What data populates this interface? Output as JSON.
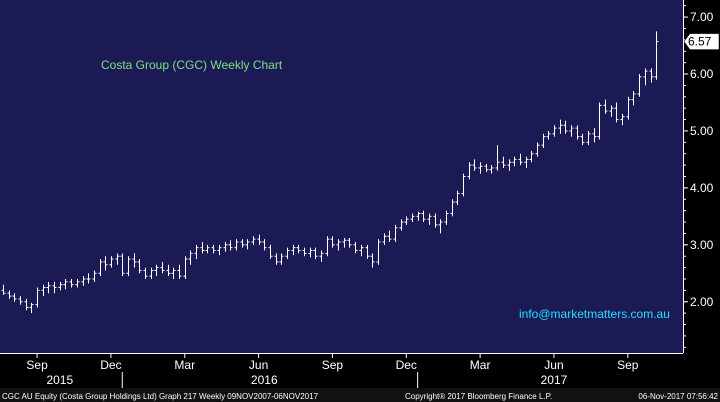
{
  "chart_title": "Costa Group (CGC) Weekly Chart",
  "watermark": "info@marketmatters.com.au",
  "last_price_label": "6.57",
  "footer": {
    "security": "CGC AU Equity (Costa Group Holdings Ltd) Graph 217  Weekly 09NOV2007-06NOV2017",
    "copyright": "Copyright® 2017 Bloomberg Finance L.P.",
    "timestamp": "06-Nov-2017 07:56:42"
  },
  "colors": {
    "plot_bg": "#1b1a54",
    "bar": "#ffffff",
    "title": "#7fe07f",
    "watermark": "#22e0ff",
    "axis_text": "#ffffff",
    "footer_text": "#ffffff"
  },
  "chart_data": {
    "type": "ohlc",
    "title": "Costa Group (CGC) Weekly Chart",
    "xlabel": "",
    "ylabel": "",
    "ylim": [
      1.1,
      7.3
    ],
    "yticks": [
      {
        "value": 7,
        "label": "7.00"
      },
      {
        "value": 6,
        "label": "6.00"
      },
      {
        "value": 5,
        "label": "5.00"
      },
      {
        "value": 4,
        "label": "4.00"
      },
      {
        "value": 3,
        "label": "3.00"
      },
      {
        "value": 2,
        "label": "2.00"
      }
    ],
    "x_month_labels": [
      {
        "label": "Sep",
        "week": 6
      },
      {
        "label": "Dec",
        "week": 19
      },
      {
        "label": "Mar",
        "week": 32
      },
      {
        "label": "Jun",
        "week": 45
      },
      {
        "label": "Sep",
        "week": 58
      },
      {
        "label": "Dec",
        "week": 71
      },
      {
        "label": "Mar",
        "week": 84
      },
      {
        "label": "Jun",
        "week": 97
      },
      {
        "label": "Sep",
        "week": 110
      }
    ],
    "x_year_labels": [
      {
        "label": "2015",
        "week": 10
      },
      {
        "label": "2016",
        "week": 46
      },
      {
        "label": "2017",
        "week": 97
      }
    ],
    "year_dividers": [
      21,
      73
    ],
    "last_value": 6.57,
    "series": [
      {
        "name": "CGC",
        "bars": [
          [
            2.2,
            2.3,
            2.12,
            2.15
          ],
          [
            2.15,
            2.2,
            2.05,
            2.1
          ],
          [
            2.1,
            2.15,
            2.0,
            2.05
          ],
          [
            2.05,
            2.1,
            1.95,
            2.0
          ],
          [
            2.0,
            2.05,
            1.85,
            1.9
          ],
          [
            1.9,
            1.98,
            1.8,
            1.95
          ],
          [
            1.95,
            2.25,
            1.9,
            2.2
          ],
          [
            2.2,
            2.3,
            2.1,
            2.25
          ],
          [
            2.25,
            2.35,
            2.15,
            2.28
          ],
          [
            2.28,
            2.35,
            2.15,
            2.25
          ],
          [
            2.25,
            2.35,
            2.2,
            2.3
          ],
          [
            2.3,
            2.4,
            2.22,
            2.35
          ],
          [
            2.35,
            2.4,
            2.25,
            2.3
          ],
          [
            2.3,
            2.4,
            2.25,
            2.35
          ],
          [
            2.35,
            2.45,
            2.28,
            2.4
          ],
          [
            2.4,
            2.5,
            2.32,
            2.4
          ],
          [
            2.4,
            2.55,
            2.35,
            2.5
          ],
          [
            2.5,
            2.75,
            2.45,
            2.7
          ],
          [
            2.7,
            2.8,
            2.55,
            2.65
          ],
          [
            2.65,
            2.8,
            2.6,
            2.75
          ],
          [
            2.75,
            2.85,
            2.65,
            2.8
          ],
          [
            2.8,
            2.85,
            2.45,
            2.5
          ],
          [
            2.5,
            2.8,
            2.45,
            2.75
          ],
          [
            2.75,
            2.85,
            2.6,
            2.7
          ],
          [
            2.7,
            2.75,
            2.5,
            2.55
          ],
          [
            2.55,
            2.6,
            2.4,
            2.45
          ],
          [
            2.45,
            2.6,
            2.4,
            2.55
          ],
          [
            2.55,
            2.65,
            2.45,
            2.6
          ],
          [
            2.6,
            2.7,
            2.5,
            2.55
          ],
          [
            2.55,
            2.65,
            2.45,
            2.5
          ],
          [
            2.5,
            2.6,
            2.4,
            2.55
          ],
          [
            2.55,
            2.65,
            2.4,
            2.45
          ],
          [
            2.45,
            2.8,
            2.4,
            2.75
          ],
          [
            2.75,
            2.9,
            2.65,
            2.85
          ],
          [
            2.85,
            3.0,
            2.75,
            2.95
          ],
          [
            2.95,
            3.05,
            2.85,
            2.9
          ],
          [
            2.9,
            3.0,
            2.85,
            2.95
          ],
          [
            2.95,
            3.0,
            2.85,
            2.9
          ],
          [
            2.9,
            3.0,
            2.82,
            2.95
          ],
          [
            2.95,
            3.05,
            2.88,
            3.0
          ],
          [
            3.0,
            3.08,
            2.9,
            2.95
          ],
          [
            2.95,
            3.1,
            2.9,
            3.05
          ],
          [
            3.05,
            3.1,
            2.95,
            3.0
          ],
          [
            3.0,
            3.1,
            2.92,
            3.05
          ],
          [
            3.05,
            3.15,
            3.0,
            3.1
          ],
          [
            3.1,
            3.18,
            3.0,
            3.05
          ],
          [
            3.05,
            3.1,
            2.9,
            2.95
          ],
          [
            2.95,
            3.0,
            2.75,
            2.8
          ],
          [
            2.8,
            2.85,
            2.65,
            2.7
          ],
          [
            2.7,
            2.85,
            2.65,
            2.8
          ],
          [
            2.8,
            2.95,
            2.75,
            2.9
          ],
          [
            2.9,
            3.0,
            2.82,
            2.95
          ],
          [
            2.95,
            3.0,
            2.85,
            2.9
          ],
          [
            2.9,
            2.95,
            2.8,
            2.85
          ],
          [
            2.85,
            2.95,
            2.78,
            2.9
          ],
          [
            2.9,
            2.95,
            2.75,
            2.8
          ],
          [
            2.8,
            2.9,
            2.7,
            2.85
          ],
          [
            2.85,
            3.15,
            2.8,
            3.1
          ],
          [
            3.1,
            3.15,
            2.95,
            3.0
          ],
          [
            3.0,
            3.1,
            2.9,
            3.05
          ],
          [
            3.05,
            3.12,
            2.95,
            3.08
          ],
          [
            3.08,
            3.12,
            2.95,
            3.0
          ],
          [
            3.0,
            3.05,
            2.85,
            2.9
          ],
          [
            2.9,
            3.0,
            2.8,
            2.95
          ],
          [
            2.95,
            3.0,
            2.75,
            2.8
          ],
          [
            2.8,
            2.85,
            2.6,
            2.7
          ],
          [
            2.7,
            3.1,
            2.65,
            3.05
          ],
          [
            3.05,
            3.2,
            3.0,
            3.15
          ],
          [
            3.15,
            3.25,
            3.05,
            3.1
          ],
          [
            3.1,
            3.35,
            3.05,
            3.3
          ],
          [
            3.3,
            3.45,
            3.25,
            3.4
          ],
          [
            3.4,
            3.5,
            3.35,
            3.45
          ],
          [
            3.45,
            3.55,
            3.4,
            3.5
          ],
          [
            3.5,
            3.58,
            3.42,
            3.55
          ],
          [
            3.55,
            3.6,
            3.4,
            3.45
          ],
          [
            3.45,
            3.55,
            3.35,
            3.5
          ],
          [
            3.5,
            3.55,
            3.3,
            3.35
          ],
          [
            3.35,
            3.45,
            3.2,
            3.4
          ],
          [
            3.4,
            3.6,
            3.35,
            3.55
          ],
          [
            3.55,
            3.8,
            3.5,
            3.75
          ],
          [
            3.75,
            3.95,
            3.7,
            3.9
          ],
          [
            3.9,
            4.25,
            3.85,
            4.2
          ],
          [
            4.2,
            4.45,
            4.15,
            4.4
          ],
          [
            4.4,
            4.5,
            4.3,
            4.35
          ],
          [
            4.35,
            4.45,
            4.25,
            4.38
          ],
          [
            4.38,
            4.42,
            4.28,
            4.32
          ],
          [
            4.32,
            4.4,
            4.25,
            4.35
          ],
          [
            4.35,
            4.75,
            4.3,
            4.45
          ],
          [
            4.45,
            4.55,
            4.35,
            4.4
          ],
          [
            4.4,
            4.5,
            4.3,
            4.45
          ],
          [
            4.45,
            4.55,
            4.38,
            4.5
          ],
          [
            4.5,
            4.6,
            4.4,
            4.45
          ],
          [
            4.45,
            4.55,
            4.35,
            4.5
          ],
          [
            4.5,
            4.65,
            4.45,
            4.6
          ],
          [
            4.6,
            4.8,
            4.55,
            4.75
          ],
          [
            4.75,
            4.95,
            4.7,
            4.9
          ],
          [
            4.9,
            5.0,
            4.85,
            4.95
          ],
          [
            4.95,
            5.1,
            4.9,
            5.05
          ],
          [
            5.05,
            5.2,
            4.95,
            5.1
          ],
          [
            5.1,
            5.18,
            4.95,
            5.0
          ],
          [
            5.0,
            5.1,
            4.9,
            5.05
          ],
          [
            5.05,
            5.1,
            4.85,
            4.9
          ],
          [
            4.9,
            4.95,
            4.75,
            4.8
          ],
          [
            4.8,
            5.0,
            4.75,
            4.95
          ],
          [
            4.95,
            5.05,
            4.8,
            4.9
          ],
          [
            4.9,
            5.5,
            4.85,
            5.45
          ],
          [
            5.45,
            5.55,
            5.3,
            5.35
          ],
          [
            5.35,
            5.45,
            5.25,
            5.4
          ],
          [
            5.4,
            5.5,
            5.15,
            5.2
          ],
          [
            5.2,
            5.3,
            5.1,
            5.25
          ],
          [
            5.25,
            5.6,
            5.2,
            5.55
          ],
          [
            5.55,
            5.7,
            5.45,
            5.65
          ],
          [
            5.65,
            6.0,
            5.6,
            5.95
          ],
          [
            5.95,
            6.1,
            5.8,
            6.05
          ],
          [
            6.05,
            6.1,
            5.85,
            5.95
          ],
          [
            5.95,
            6.75,
            5.9,
            6.57
          ]
        ]
      }
    ]
  }
}
